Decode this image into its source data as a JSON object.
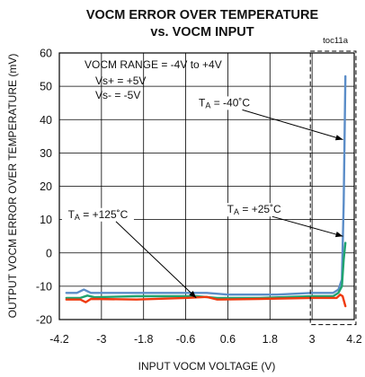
{
  "chart_data": {
    "type": "line",
    "title": "VOCM ERROR OVER TEMPERATURE",
    "subtitle": "vs. VOCM INPUT",
    "reference": "toc11a",
    "xlabel": "INPUT VOCM VOLTAGE (V)",
    "ylabel": "OUTPUT VOCM ERROR OVER TEMPERATURE (mV)",
    "xlim": [
      -4.2,
      4.2
    ],
    "ylim": [
      -20,
      60
    ],
    "x_ticks": [
      "-4.2",
      "-3",
      "-1.8",
      "-0.6",
      "0.6",
      "1.8",
      "3",
      "4.2"
    ],
    "y_ticks": [
      "60",
      "50",
      "40",
      "30",
      "20",
      "10",
      "0",
      "-10",
      "-20"
    ],
    "grid": true,
    "conditions": {
      "range": "VOCM RANGE = -4V to +4V",
      "vs_plus": "Vs+ = +5V",
      "vs_minus": "Vs- = -5V"
    },
    "series": [
      {
        "name": "TA = -40°C",
        "label": {
          "main": "T",
          "sub": "A",
          "rest": " = -40˚C"
        },
        "color": "#5B8DC8",
        "points": [
          [
            -4.0,
            -12
          ],
          [
            -3.7,
            -12
          ],
          [
            -3.5,
            -11
          ],
          [
            -3.3,
            -12
          ],
          [
            -2.0,
            -12
          ],
          [
            0.0,
            -12
          ],
          [
            0.6,
            -12.5
          ],
          [
            2.0,
            -12.5
          ],
          [
            3.0,
            -12
          ],
          [
            3.6,
            -12
          ],
          [
            3.75,
            -11
          ],
          [
            3.85,
            -8
          ],
          [
            3.9,
            15
          ],
          [
            3.95,
            53
          ]
        ]
      },
      {
        "name": "TA = +25°C",
        "label": {
          "main": "T",
          "sub": "A",
          "rest": " = +25˚C"
        },
        "color": "#1FA36F",
        "points": [
          [
            -4.0,
            -13.5
          ],
          [
            -3.6,
            -13.5
          ],
          [
            -3.4,
            -12.8
          ],
          [
            -3.2,
            -13.3
          ],
          [
            -2.0,
            -13
          ],
          [
            -0.3,
            -13
          ],
          [
            0.3,
            -13.5
          ],
          [
            1.5,
            -13.5
          ],
          [
            3.0,
            -13
          ],
          [
            3.6,
            -13
          ],
          [
            3.75,
            -12
          ],
          [
            3.85,
            -10
          ],
          [
            3.9,
            -2
          ],
          [
            3.95,
            3
          ]
        ]
      },
      {
        "name": "TA = +125°C",
        "label": {
          "main": "T",
          "sub": "A",
          "rest": " = +125˚C"
        },
        "color": "#F03A0E",
        "points": [
          [
            -4.0,
            -14
          ],
          [
            -3.6,
            -14
          ],
          [
            -3.45,
            -14.8
          ],
          [
            -3.3,
            -13.8
          ],
          [
            -2.0,
            -14
          ],
          [
            -0.6,
            -13.5
          ],
          [
            0.0,
            -13.2
          ],
          [
            0.3,
            -14
          ],
          [
            1.5,
            -13.8
          ],
          [
            3.0,
            -13.5
          ],
          [
            3.7,
            -13.5
          ],
          [
            3.8,
            -12.5
          ],
          [
            3.87,
            -13
          ],
          [
            3.95,
            -16
          ]
        ]
      }
    ],
    "annotations": [
      {
        "series": 0,
        "text_at": [
          0.5,
          44
        ],
        "arrow_to": [
          3.88,
          34
        ]
      },
      {
        "series": 1,
        "text_at": [
          1.35,
          12
        ],
        "arrow_to": [
          3.88,
          5
        ]
      },
      {
        "series": 2,
        "text_at": [
          -3.1,
          10.5
        ],
        "arrow_to": [
          -0.3,
          -13.5
        ]
      }
    ],
    "highlight_region": {
      "x": [
        2.95,
        4.25
      ],
      "y": [
        -21.5,
        60
      ]
    }
  }
}
